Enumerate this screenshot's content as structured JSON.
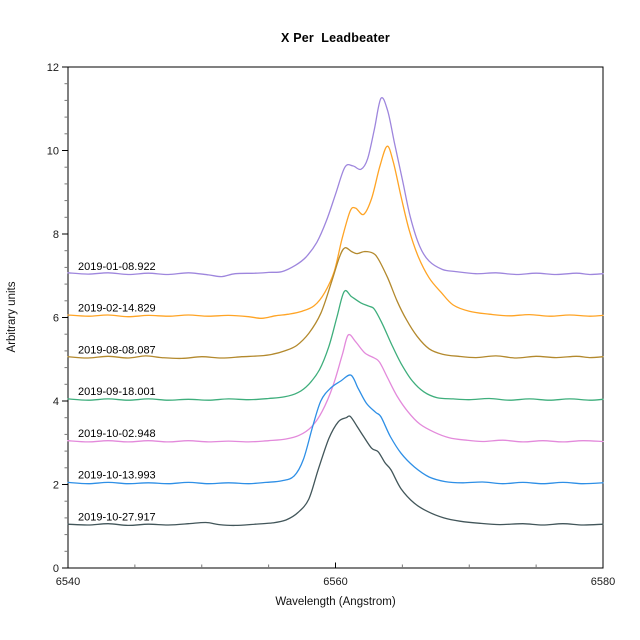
{
  "chart_data": {
    "type": "line",
    "title": "X Per  Leadbeater",
    "xlabel": "Wavelength (Angstrom)",
    "ylabel": "Arbitrary units",
    "xlim": [
      6540,
      6580
    ],
    "ylim": [
      0,
      12
    ],
    "grid": false,
    "legend": "inline-labels-above-each-curve",
    "x_major_ticks": [
      6540,
      6560,
      6580
    ],
    "x_tick_labels": [
      "6540",
      "6560",
      "6580"
    ],
    "x_minor_step": 5,
    "y_major_ticks": [
      0,
      2,
      4,
      6,
      8,
      10,
      12
    ],
    "y_tick_labels": [
      "0",
      "2",
      "4",
      "6",
      "8",
      "10",
      "12"
    ],
    "y_minor_step": 0.4,
    "series": [
      {
        "name": "2019-01-08.922",
        "color": "#9E86DD",
        "offset": 7,
        "points": [
          [
            6540,
            7.07
          ],
          [
            6541.5,
            7.04
          ],
          [
            6543,
            7.07
          ],
          [
            6544.5,
            7.03
          ],
          [
            6546,
            7.06
          ],
          [
            6547.5,
            7.03
          ],
          [
            6549,
            7.07
          ],
          [
            6550.5,
            7.02
          ],
          [
            6551.5,
            6.98
          ],
          [
            6552.5,
            7.05
          ],
          [
            6554,
            7.06
          ],
          [
            6555,
            7.08
          ],
          [
            6556,
            7.1
          ],
          [
            6557,
            7.25
          ],
          [
            6557.8,
            7.45
          ],
          [
            6558.6,
            7.8
          ],
          [
            6559.3,
            8.3
          ],
          [
            6560,
            8.95
          ],
          [
            6560.7,
            9.6
          ],
          [
            6561.3,
            9.63
          ],
          [
            6561.9,
            9.55
          ],
          [
            6562.4,
            9.8
          ],
          [
            6562.9,
            10.5
          ],
          [
            6563.4,
            11.25
          ],
          [
            6563.9,
            10.95
          ],
          [
            6564.4,
            10.2
          ],
          [
            6565,
            9.3
          ],
          [
            6565.6,
            8.4
          ],
          [
            6566.3,
            7.7
          ],
          [
            6567,
            7.35
          ],
          [
            6568,
            7.15
          ],
          [
            6569,
            7.1
          ],
          [
            6570.5,
            7.05
          ],
          [
            6572,
            7.07
          ],
          [
            6573.5,
            7.03
          ],
          [
            6575,
            7.06
          ],
          [
            6576.5,
            7.03
          ],
          [
            6578,
            7.06
          ],
          [
            6579,
            7.03
          ],
          [
            6580,
            7.05
          ]
        ]
      },
      {
        "name": "2019-02-14.829",
        "color": "#FFA425",
        "offset": 6,
        "points": [
          [
            6540,
            6.06
          ],
          [
            6541.5,
            6.03
          ],
          [
            6543,
            6.06
          ],
          [
            6544.5,
            6.02
          ],
          [
            6546,
            6.05
          ],
          [
            6547.5,
            6.03
          ],
          [
            6549,
            6.06
          ],
          [
            6550.5,
            6.03
          ],
          [
            6552,
            6.05
          ],
          [
            6553.5,
            6.02
          ],
          [
            6554.5,
            5.98
          ],
          [
            6555.5,
            6.04
          ],
          [
            6556.5,
            6.08
          ],
          [
            6557.5,
            6.15
          ],
          [
            6558.4,
            6.28
          ],
          [
            6559.2,
            6.6
          ],
          [
            6559.9,
            7.1
          ],
          [
            6560.5,
            7.9
          ],
          [
            6561.1,
            8.55
          ],
          [
            6561.5,
            8.62
          ],
          [
            6562.1,
            8.47
          ],
          [
            6562.7,
            8.85
          ],
          [
            6563.3,
            9.6
          ],
          [
            6563.85,
            10.1
          ],
          [
            6564.3,
            9.75
          ],
          [
            6564.9,
            8.9
          ],
          [
            6565.5,
            8.1
          ],
          [
            6566.2,
            7.45
          ],
          [
            6567,
            6.95
          ],
          [
            6567.9,
            6.6
          ],
          [
            6568.8,
            6.3
          ],
          [
            6570,
            6.15
          ],
          [
            6571.5,
            6.08
          ],
          [
            6573,
            6.04
          ],
          [
            6574.5,
            6.07
          ],
          [
            6576,
            6.03
          ],
          [
            6577.5,
            6.06
          ],
          [
            6579,
            6.03
          ],
          [
            6580,
            6.05
          ]
        ]
      },
      {
        "name": "2019-08-08.087",
        "color": "#B3892D",
        "offset": 5,
        "points": [
          [
            6540,
            5.06
          ],
          [
            6541.5,
            5.03
          ],
          [
            6543,
            5.07
          ],
          [
            6544.5,
            5.03
          ],
          [
            6545.8,
            5.08
          ],
          [
            6547,
            5.04
          ],
          [
            6548.5,
            5.02
          ],
          [
            6550,
            5.06
          ],
          [
            6551.5,
            5.03
          ],
          [
            6553,
            5.06
          ],
          [
            6554.3,
            5.08
          ],
          [
            6555.3,
            5.12
          ],
          [
            6556.2,
            5.2
          ],
          [
            6557.1,
            5.33
          ],
          [
            6558,
            5.62
          ],
          [
            6558.9,
            6.1
          ],
          [
            6559.7,
            6.85
          ],
          [
            6560.3,
            7.45
          ],
          [
            6560.7,
            7.67
          ],
          [
            6561.2,
            7.58
          ],
          [
            6561.6,
            7.53
          ],
          [
            6562.2,
            7.58
          ],
          [
            6562.8,
            7.54
          ],
          [
            6563.2,
            7.4
          ],
          [
            6563.9,
            6.95
          ],
          [
            6564.6,
            6.4
          ],
          [
            6565.3,
            5.95
          ],
          [
            6566.1,
            5.55
          ],
          [
            6567,
            5.25
          ],
          [
            6568,
            5.12
          ],
          [
            6569.2,
            5.07
          ],
          [
            6570.5,
            5.04
          ],
          [
            6572,
            5.08
          ],
          [
            6573.5,
            5.03
          ],
          [
            6575,
            5.07
          ],
          [
            6576.5,
            5.04
          ],
          [
            6578,
            5.07
          ],
          [
            6579,
            5.04
          ],
          [
            6580,
            5.06
          ]
        ]
      },
      {
        "name": "2019-09-18.001",
        "color": "#3EAE7C",
        "offset": 4,
        "points": [
          [
            6540,
            4.05
          ],
          [
            6541.5,
            4.02
          ],
          [
            6543,
            4.05
          ],
          [
            6544.5,
            4.02
          ],
          [
            6546,
            4.05
          ],
          [
            6547.5,
            4.02
          ],
          [
            6549,
            4.04
          ],
          [
            6550.5,
            4.02
          ],
          [
            6552,
            4.05
          ],
          [
            6553.5,
            4.03
          ],
          [
            6555,
            4.06
          ],
          [
            6556.2,
            4.1
          ],
          [
            6557.2,
            4.2
          ],
          [
            6558,
            4.4
          ],
          [
            6558.8,
            4.75
          ],
          [
            6559.5,
            5.3
          ],
          [
            6560.1,
            6.0
          ],
          [
            6560.65,
            6.62
          ],
          [
            6561.2,
            6.5
          ],
          [
            6561.9,
            6.35
          ],
          [
            6562.5,
            6.27
          ],
          [
            6562.9,
            6.2
          ],
          [
            6563.5,
            5.85
          ],
          [
            6564.2,
            5.35
          ],
          [
            6564.9,
            4.9
          ],
          [
            6565.7,
            4.5
          ],
          [
            6566.6,
            4.22
          ],
          [
            6567.6,
            4.08
          ],
          [
            6568.8,
            4.05
          ],
          [
            6570,
            4.03
          ],
          [
            6571.5,
            4.06
          ],
          [
            6573,
            4.02
          ],
          [
            6574.5,
            4.05
          ],
          [
            6576,
            4.02
          ],
          [
            6577.5,
            4.05
          ],
          [
            6579,
            4.02
          ],
          [
            6580,
            4.04
          ]
        ]
      },
      {
        "name": "2019-10-02.948",
        "color": "#E38ADB",
        "offset": 3,
        "points": [
          [
            6540,
            3.05
          ],
          [
            6541.5,
            3.02
          ],
          [
            6543,
            3.05
          ],
          [
            6544.5,
            3.02
          ],
          [
            6546,
            3.05
          ],
          [
            6547.5,
            3.02
          ],
          [
            6549,
            3.05
          ],
          [
            6550.5,
            3.02
          ],
          [
            6552,
            3.04
          ],
          [
            6553.5,
            3.02
          ],
          [
            6555,
            3.05
          ],
          [
            6556.3,
            3.09
          ],
          [
            6557.3,
            3.18
          ],
          [
            6558.2,
            3.38
          ],
          [
            6559,
            3.75
          ],
          [
            6559.8,
            4.35
          ],
          [
            6560.5,
            5.1
          ],
          [
            6560.95,
            5.58
          ],
          [
            6561.5,
            5.42
          ],
          [
            6562.2,
            5.15
          ],
          [
            6562.9,
            5.03
          ],
          [
            6563.3,
            4.93
          ],
          [
            6563.9,
            4.55
          ],
          [
            6564.6,
            4.12
          ],
          [
            6565.4,
            3.75
          ],
          [
            6566.3,
            3.45
          ],
          [
            6567.4,
            3.25
          ],
          [
            6568.5,
            3.12
          ],
          [
            6569.8,
            3.06
          ],
          [
            6571,
            3.03
          ],
          [
            6572.5,
            3.06
          ],
          [
            6574,
            3.02
          ],
          [
            6575.5,
            3.05
          ],
          [
            6577,
            3.02
          ],
          [
            6578.5,
            3.05
          ],
          [
            6580,
            3.03
          ]
        ]
      },
      {
        "name": "2019-10-13.993",
        "color": "#2E8FE6",
        "offset": 2,
        "points": [
          [
            6540,
            2.05
          ],
          [
            6541.5,
            2.02
          ],
          [
            6543,
            2.05
          ],
          [
            6544.5,
            2.02
          ],
          [
            6546,
            2.04
          ],
          [
            6547.5,
            2.02
          ],
          [
            6549,
            2.05
          ],
          [
            6550.5,
            2.02
          ],
          [
            6552,
            2.04
          ],
          [
            6553.5,
            2.02
          ],
          [
            6554.8,
            2.05
          ],
          [
            6556,
            2.09
          ],
          [
            6556.9,
            2.2
          ],
          [
            6557.6,
            2.6
          ],
          [
            6558.3,
            3.4
          ],
          [
            6558.9,
            4.0
          ],
          [
            6559.6,
            4.3
          ],
          [
            6560.4,
            4.48
          ],
          [
            6561.15,
            4.62
          ],
          [
            6561.7,
            4.3
          ],
          [
            6562.3,
            3.95
          ],
          [
            6563,
            3.73
          ],
          [
            6563.4,
            3.62
          ],
          [
            6564.1,
            3.15
          ],
          [
            6564.9,
            2.75
          ],
          [
            6565.9,
            2.42
          ],
          [
            6567,
            2.18
          ],
          [
            6568.2,
            2.07
          ],
          [
            6569.5,
            2.04
          ],
          [
            6571,
            2.06
          ],
          [
            6572.5,
            2.02
          ],
          [
            6574,
            2.05
          ],
          [
            6575.5,
            2.02
          ],
          [
            6577,
            2.05
          ],
          [
            6578.5,
            2.02
          ],
          [
            6580,
            2.04
          ]
        ]
      },
      {
        "name": "2019-10-27.917",
        "color": "#42565A",
        "offset": 1,
        "points": [
          [
            6540,
            1.05
          ],
          [
            6541.5,
            1.03
          ],
          [
            6543,
            1.06
          ],
          [
            6544.5,
            1.02
          ],
          [
            6546,
            1.05
          ],
          [
            6547.5,
            1.03
          ],
          [
            6549,
            1.06
          ],
          [
            6550.3,
            1.09
          ],
          [
            6551.3,
            1.04
          ],
          [
            6552.5,
            1.02
          ],
          [
            6554,
            1.05
          ],
          [
            6555.3,
            1.08
          ],
          [
            6556.3,
            1.15
          ],
          [
            6557.2,
            1.33
          ],
          [
            6558,
            1.65
          ],
          [
            6558.7,
            2.35
          ],
          [
            6559.5,
            3.1
          ],
          [
            6560.2,
            3.5
          ],
          [
            6560.8,
            3.6
          ],
          [
            6561.1,
            3.63
          ],
          [
            6561.6,
            3.4
          ],
          [
            6562.1,
            3.15
          ],
          [
            6562.7,
            2.87
          ],
          [
            6563.2,
            2.78
          ],
          [
            6563.7,
            2.52
          ],
          [
            6564.15,
            2.35
          ],
          [
            6564.9,
            1.9
          ],
          [
            6565.9,
            1.55
          ],
          [
            6566.9,
            1.35
          ],
          [
            6568.1,
            1.2
          ],
          [
            6569.3,
            1.12
          ],
          [
            6570.8,
            1.07
          ],
          [
            6572.3,
            1.04
          ],
          [
            6574,
            1.06
          ],
          [
            6575.5,
            1.03
          ],
          [
            6577,
            1.06
          ],
          [
            6578.5,
            1.03
          ],
          [
            6580,
            1.05
          ]
        ]
      }
    ]
  }
}
